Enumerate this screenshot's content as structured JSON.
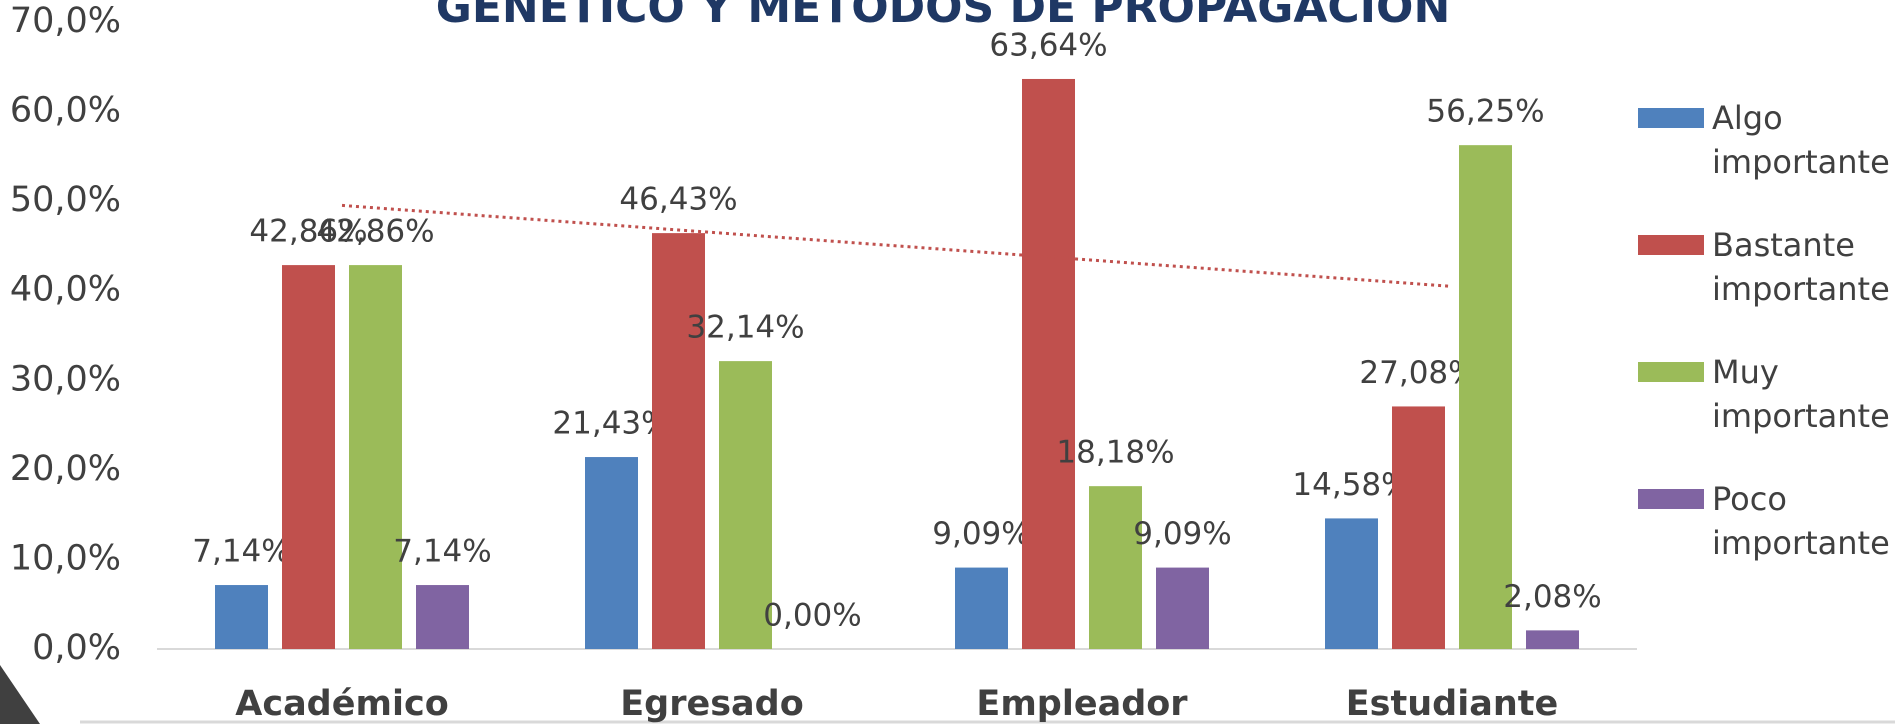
{
  "chart_data": {
    "type": "bar",
    "title": "GENÉTICO Y MÉTODOS DE PROPAGACIÓN",
    "categories": [
      "Académico",
      "Egresado",
      "Empleador",
      "Estudiante"
    ],
    "series": [
      {
        "name": "Algo importante",
        "color": "#4f81bd",
        "values": [
          7.14,
          21.43,
          9.09,
          14.58
        ],
        "value_labels": [
          "7,14%",
          "21,43%",
          "9,09%",
          "14,58%"
        ]
      },
      {
        "name": "Bastante importante",
        "color": "#c0504d",
        "values": [
          42.86,
          46.43,
          63.64,
          27.08
        ],
        "value_labels": [
          "42,86%",
          "46,43%",
          "63,64%",
          "27,08%"
        ]
      },
      {
        "name": "Muy importante",
        "color": "#9bbb59",
        "values": [
          42.86,
          32.14,
          18.18,
          56.25
        ],
        "value_labels": [
          "42,86%",
          "32,14%",
          "18,18%",
          "56,25%"
        ]
      },
      {
        "name": "Poco importante",
        "color": "#8064a2",
        "values": [
          7.14,
          0,
          9.09,
          2.08
        ],
        "value_labels": [
          "7,14%",
          "0,00%",
          "9,09%",
          "2,08%"
        ]
      }
    ],
    "ylim": [
      0,
      70
    ],
    "yticks": [
      {
        "value": 0,
        "label": "0,0%"
      },
      {
        "value": 10,
        "label": "10,0%"
      },
      {
        "value": 20,
        "label": "20,0%"
      },
      {
        "value": 30,
        "label": "30,0%"
      },
      {
        "value": 40,
        "label": "40,0%"
      },
      {
        "value": 50,
        "label": "50,0%"
      },
      {
        "value": 60,
        "label": "60,0%"
      },
      {
        "value": 70,
        "label": "70,0%"
      }
    ],
    "trendline_series": 1,
    "legend": "right"
  }
}
